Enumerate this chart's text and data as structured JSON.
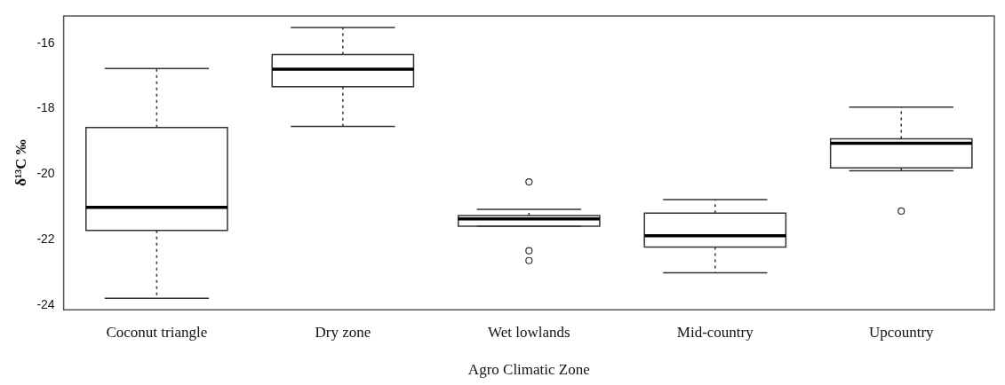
{
  "chart_data": {
    "type": "box",
    "xlabel": "Agro Climatic Zone",
    "ylabel": "δ¹³C ‰",
    "categories": [
      "Coconut triangle",
      "Dry zone",
      "Wet lowlands",
      "Mid-country",
      "Upcountry"
    ],
    "boxes": [
      {
        "low": -23.78,
        "q1": -21.71,
        "median": -21.01,
        "q3": -18.57,
        "high": -16.77
      },
      {
        "low": -18.54,
        "q1": -17.33,
        "median": -16.79,
        "q3": -16.35,
        "high": -15.52
      },
      {
        "low": -21.58,
        "q1": -21.58,
        "median": -21.36,
        "q3": -21.26,
        "high": -21.07,
        "outliers": [
          -20.23,
          -22.33,
          -22.63
        ]
      },
      {
        "low": -23.0,
        "q1": -22.22,
        "median": -21.87,
        "q3": -21.18,
        "high": -20.77
      },
      {
        "low": -19.89,
        "q1": -19.8,
        "median": -19.05,
        "q3": -18.92,
        "high": -17.95,
        "outliers": [
          -21.12
        ]
      }
    ],
    "ylim": [
      -24.13,
      -15.17
    ],
    "yticks": [
      -24,
      -22,
      -20,
      -18,
      -16
    ]
  }
}
